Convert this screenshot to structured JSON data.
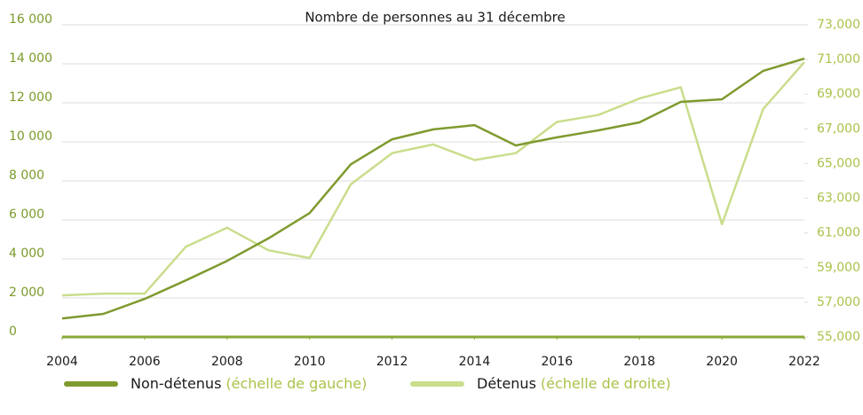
{
  "chart_data": {
    "type": "line",
    "title": "Nombre de personnes au 31 décembre",
    "x": [
      2004,
      2005,
      2006,
      2007,
      2008,
      2009,
      2010,
      2011,
      2012,
      2013,
      2014,
      2015,
      2016,
      2017,
      2018,
      2019,
      2020,
      2021,
      2022
    ],
    "xlim": [
      2004,
      2022
    ],
    "xticks": [
      2004,
      2006,
      2008,
      2010,
      2012,
      2014,
      2016,
      2018,
      2020,
      2022
    ],
    "ylim": [
      0,
      16000
    ],
    "yticks": [
      {
        "value": 0,
        "label": "0"
      },
      {
        "value": 2000,
        "label": "2 000"
      },
      {
        "value": 4000,
        "label": "4 000"
      },
      {
        "value": 6000,
        "label": "6 000"
      },
      {
        "value": 8000,
        "label": "8 000"
      },
      {
        "value": 10000,
        "label": "10 000"
      },
      {
        "value": 12000,
        "label": "12 000"
      },
      {
        "value": 14000,
        "label": "14 000"
      },
      {
        "value": 16000,
        "label": "16 000"
      }
    ],
    "y2lim": [
      55000,
      73000
    ],
    "y2ticks": [
      {
        "value": 55000,
        "label": "55,000"
      },
      {
        "value": 57000,
        "label": "57,000"
      },
      {
        "value": 59000,
        "label": "59,000"
      },
      {
        "value": 61000,
        "label": "61,000"
      },
      {
        "value": 63000,
        "label": "63,000"
      },
      {
        "value": 65000,
        "label": "65,000"
      },
      {
        "value": 67000,
        "label": "67,000"
      },
      {
        "value": 69000,
        "label": "69,000"
      },
      {
        "value": 71000,
        "label": "71,000"
      },
      {
        "value": 73000,
        "label": "73,000"
      }
    ],
    "grid": true,
    "legend": "bottom",
    "series": [
      {
        "name": "Non-détenus",
        "legend_note": "(échelle de gauche)",
        "color": "#7f9a2e",
        "axis": "y",
        "values": [
          950,
          1180,
          1950,
          2900,
          3900,
          5050,
          6350,
          8850,
          10130,
          10640,
          10860,
          9820,
          10230,
          10590,
          11000,
          12050,
          12180,
          13640,
          14270
        ]
      },
      {
        "name": "Détenus",
        "legend_note": "(échelle de droite)",
        "color": "#cadd8c",
        "axis": "y2",
        "values": [
          57400,
          57500,
          57500,
          60200,
          61300,
          60000,
          59550,
          63800,
          65600,
          66100,
          65200,
          65600,
          67400,
          67800,
          68750,
          69400,
          61500,
          68150,
          70850
        ]
      }
    ]
  }
}
